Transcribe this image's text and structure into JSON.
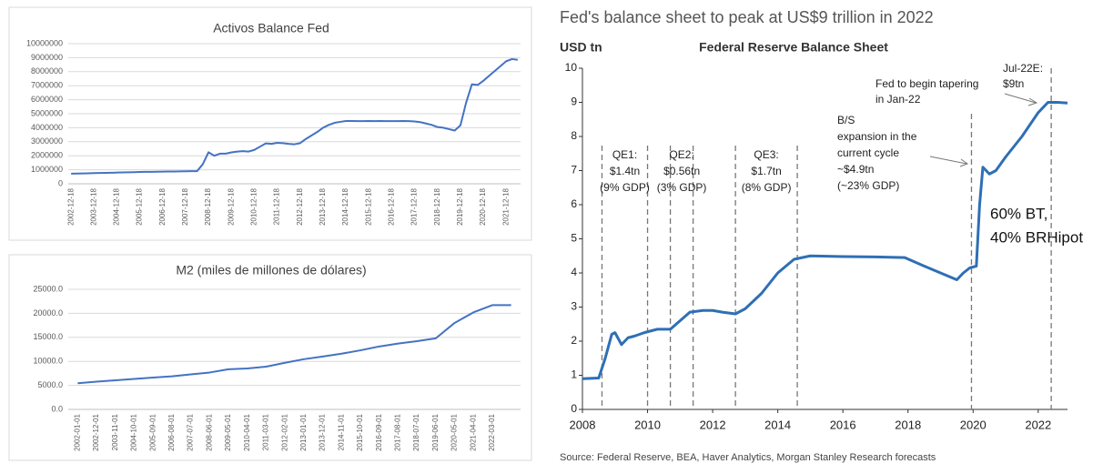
{
  "chart_data": [
    {
      "type": "line",
      "title": "Activos Balance Fed",
      "categories": [
        "2002-12-18",
        null,
        null,
        null,
        "2003-12-18",
        null,
        null,
        null,
        "2004-12-18",
        null,
        null,
        null,
        "2005-12-18",
        null,
        null,
        null,
        "2006-12-18",
        null,
        null,
        null,
        "2007-12-18",
        null,
        null,
        null,
        "2008-12-18",
        null,
        null,
        null,
        "2009-12-18",
        null,
        null,
        null,
        "2010-12-18",
        null,
        null,
        null,
        "2011-12-18",
        null,
        null,
        null,
        "2012-12-18",
        null,
        null,
        null,
        "2013-12-18",
        null,
        null,
        null,
        "2014-12-18",
        null,
        null,
        null,
        "2015-12-18",
        null,
        null,
        null,
        "2016-12-18",
        null,
        null,
        null,
        "2017-12-18",
        null,
        null,
        null,
        "2018-12-18",
        null,
        null,
        null,
        "2019-12-18",
        null,
        null,
        null,
        "2020-12-18",
        null,
        null,
        null,
        "2021-12-18",
        null,
        null
      ],
      "series": [
        {
          "color": "#4472c4",
          "values": [
            720000,
            730000,
            740000,
            750000,
            760000,
            770000,
            780000,
            790000,
            800000,
            810000,
            820000,
            830000,
            840000,
            850000,
            855000,
            860000,
            870000,
            875000,
            880000,
            885000,
            890000,
            900000,
            900000,
            1400000,
            2250000,
            2000000,
            2150000,
            2150000,
            2240000,
            2300000,
            2330000,
            2300000,
            2420000,
            2650000,
            2880000,
            2850000,
            2920000,
            2900000,
            2850000,
            2820000,
            2900000,
            3200000,
            3450000,
            3700000,
            4000000,
            4200000,
            4350000,
            4420000,
            4480000,
            4480000,
            4470000,
            4470000,
            4480000,
            4470000,
            4480000,
            4470000,
            4470000,
            4470000,
            4480000,
            4470000,
            4450000,
            4400000,
            4300000,
            4200000,
            4050000,
            4000000,
            3900000,
            3800000,
            4170000,
            5800000,
            7100000,
            7050000,
            7350000,
            7700000,
            8050000,
            8400000,
            8750000,
            8900000,
            8850000
          ]
        }
      ],
      "ylim": [
        0,
        10000000
      ],
      "yticks": [
        0,
        1000000,
        2000000,
        3000000,
        4000000,
        5000000,
        6000000,
        7000000,
        8000000,
        9000000,
        10000000
      ],
      "grid": true
    },
    {
      "type": "line",
      "title": "M2 (miles de millones de dólares)",
      "categories": [
        "2002-01-01",
        "2002-12-01",
        "2003-11-01",
        "2004-10-01",
        "2005-09-01",
        "2006-08-01",
        "2007-07-01",
        "2008-06-01",
        "2009-05-01",
        "2010-04-01",
        "2011-03-01",
        "2012-02-01",
        "2013-01-01",
        "2013-12-01",
        "2014-11-01",
        "2015-10-01",
        "2016-09-01",
        "2017-08-01",
        "2018-07-01",
        "2019-06-01",
        "2020-05-01",
        "2021-04-01",
        "2022-03-01",
        null
      ],
      "series": [
        {
          "color": "#4472c4",
          "values": [
            5450,
            5780,
            6050,
            6350,
            6620,
            6880,
            7300,
            7680,
            8350,
            8530,
            8900,
            9700,
            10450,
            11000,
            11600,
            12300,
            13100,
            13700,
            14200,
            14800,
            18000,
            20200,
            21700,
            21700
          ]
        }
      ],
      "ylim": [
        0,
        25000
      ],
      "yticks": [
        {
          "value": 0,
          "label": "0.0"
        },
        {
          "value": 5000,
          "label": "5000.0"
        },
        {
          "value": 10000,
          "label": "10000.0"
        },
        {
          "value": 15000,
          "label": "15000.0"
        },
        {
          "value": 20000,
          "label": "20000.0"
        },
        {
          "value": 25000,
          "label": "25000.0"
        }
      ],
      "grid": true
    },
    {
      "type": "line",
      "title": "Fed's balance sheet to peak at US$9 trillion in 2022",
      "subtitle": "Federal Reserve Balance Sheet",
      "ylabel": "USD tn",
      "x": [
        2008.0,
        2008.5,
        2008.7,
        2008.9,
        2009.0,
        2009.2,
        2009.4,
        2009.6,
        2009.9,
        2010.3,
        2010.7,
        2011.0,
        2011.3,
        2011.7,
        2012.0,
        2012.3,
        2012.7,
        2013.0,
        2013.5,
        2014.0,
        2014.5,
        2015.0,
        2016.0,
        2017.0,
        2017.9,
        2018.5,
        2019.0,
        2019.5,
        2019.7,
        2019.9,
        2020.1,
        2020.2,
        2020.3,
        2020.5,
        2020.7,
        2021.0,
        2021.5,
        2022.0,
        2022.3,
        2022.6,
        2022.9
      ],
      "series": [
        {
          "color": "#2e6fb5",
          "values": [
            0.9,
            0.92,
            1.5,
            2.2,
            2.25,
            1.9,
            2.1,
            2.15,
            2.25,
            2.35,
            2.35,
            2.6,
            2.85,
            2.9,
            2.9,
            2.85,
            2.8,
            2.95,
            3.4,
            4.0,
            4.4,
            4.5,
            4.48,
            4.47,
            4.45,
            4.2,
            4.0,
            3.8,
            4.0,
            4.15,
            4.2,
            6.0,
            7.1,
            6.9,
            7.0,
            7.4,
            8.0,
            8.7,
            9.0,
            9.0,
            8.98
          ]
        }
      ],
      "xlim": [
        2008,
        2022.9
      ],
      "xticks": [
        2008,
        2010,
        2012,
        2014,
        2016,
        2018,
        2020,
        2022
      ],
      "ylim": [
        0,
        10
      ],
      "yticks": [
        0,
        1,
        2,
        3,
        4,
        5,
        6,
        7,
        8,
        9,
        10
      ],
      "grid": false,
      "periods": [
        {
          "label": [
            "QE1:",
            "$1.4tn",
            "(9% GDP)"
          ],
          "start": 2008.6,
          "end": 2010.0
        },
        {
          "label": [
            "QE2:",
            "$0.56tn",
            "(3% GDP)"
          ],
          "start": 2010.7,
          "end": 2011.4
        },
        {
          "label": [
            "QE3:",
            "$1.7tn",
            "(8% GDP)"
          ],
          "start": 2012.7,
          "end": 2014.6
        }
      ],
      "markers": [
        2019.95,
        2022.4
      ],
      "annotations": [
        {
          "lines": [
            "Fed to begin tapering",
            "in Jan-22"
          ]
        },
        {
          "lines": [
            "B/S",
            "expansion in the",
            "current cycle",
            "~$4.9tn",
            "(~23% GDP)"
          ]
        },
        {
          "lines": [
            "Jul-22E:",
            "$9tn"
          ]
        }
      ],
      "note": [
        "60% BT,",
        "40% BRHipot"
      ],
      "source": "Source: Federal Reserve, BEA, Haver Analytics, Morgan Stanley Research forecasts"
    }
  ]
}
